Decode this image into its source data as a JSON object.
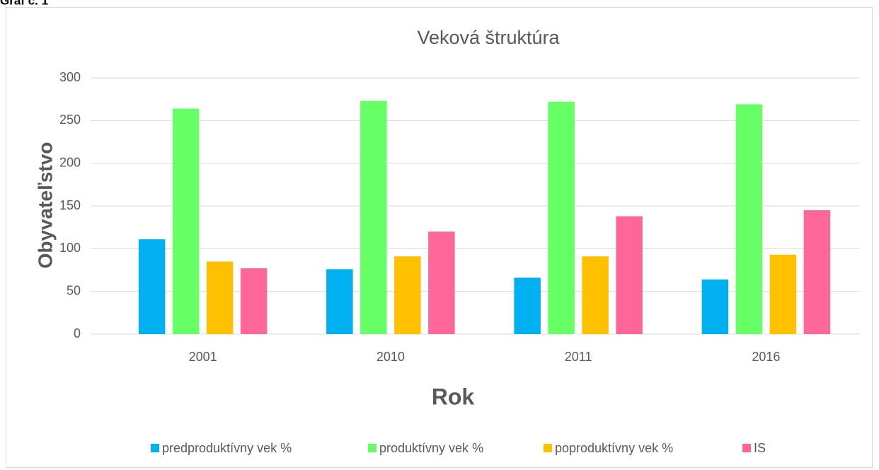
{
  "caption": "Graf č. 1",
  "chart_data": {
    "type": "bar",
    "title": "Veková štruktúra",
    "x_label": "Rok",
    "y_label": "Obyvateľstvo",
    "categories": [
      "2001",
      "2010",
      "2011",
      "2016"
    ],
    "series": [
      {
        "name": "predproduktívny vek %",
        "color": "#00b0f0",
        "values": [
          111,
          76,
          66,
          64
        ]
      },
      {
        "name": "produktívny vek %",
        "color": "#66ff66",
        "values": [
          264,
          273,
          272,
          269
        ]
      },
      {
        "name": "poproduktívny vek %",
        "color": "#ffc000",
        "values": [
          85,
          91,
          91,
          93
        ]
      },
      {
        "name": "IS",
        "color": "#ff6699",
        "values": [
          77,
          120,
          138,
          145
        ]
      }
    ],
    "ylim": [
      0,
      300
    ],
    "yticks": [
      0,
      50,
      100,
      150,
      200,
      250,
      300
    ],
    "grid": true,
    "legend": "bottom"
  }
}
